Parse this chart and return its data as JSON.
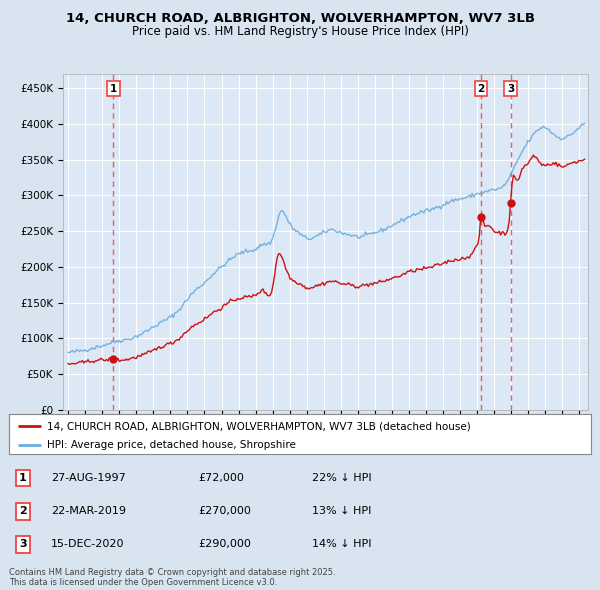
{
  "title_line1": "14, CHURCH ROAD, ALBRIGHTON, WOLVERHAMPTON, WV7 3LB",
  "title_line2": "Price paid vs. HM Land Registry's House Price Index (HPI)",
  "bg_color": "#d8e4f0",
  "plot_bg_color": "#dce8f5",
  "grid_color": "#ffffff",
  "hpi_color": "#6aabde",
  "price_color": "#cc1111",
  "sale_dashed_color": "#ee4444",
  "ylim": [
    0,
    470000
  ],
  "yticks": [
    0,
    50000,
    100000,
    150000,
    200000,
    250000,
    300000,
    350000,
    400000,
    450000
  ],
  "ytick_labels": [
    "£0",
    "£50K",
    "£100K",
    "£150K",
    "£200K",
    "£250K",
    "£300K",
    "£350K",
    "£400K",
    "£450K"
  ],
  "sales": [
    {
      "date_num": 1997.66,
      "price": 72000,
      "label": "1"
    },
    {
      "date_num": 2019.23,
      "price": 270000,
      "label": "2"
    },
    {
      "date_num": 2020.96,
      "price": 290000,
      "label": "3"
    }
  ],
  "legend_entries": [
    {
      "label": "14, CHURCH ROAD, ALBRIGHTON, WOLVERHAMPTON, WV7 3LB (detached house)",
      "color": "#cc1111"
    },
    {
      "label": "HPI: Average price, detached house, Shropshire",
      "color": "#6aabde"
    }
  ],
  "table_rows": [
    {
      "num": "1",
      "date": "27-AUG-1997",
      "price": "£72,000",
      "hpi": "22% ↓ HPI"
    },
    {
      "num": "2",
      "date": "22-MAR-2019",
      "price": "£270,000",
      "hpi": "13% ↓ HPI"
    },
    {
      "num": "3",
      "date": "15-DEC-2020",
      "price": "£290,000",
      "hpi": "14% ↓ HPI"
    }
  ],
  "footnote": "Contains HM Land Registry data © Crown copyright and database right 2025.\nThis data is licensed under the Open Government Licence v3.0.",
  "xlim_start": 1994.7,
  "xlim_end": 2025.5
}
